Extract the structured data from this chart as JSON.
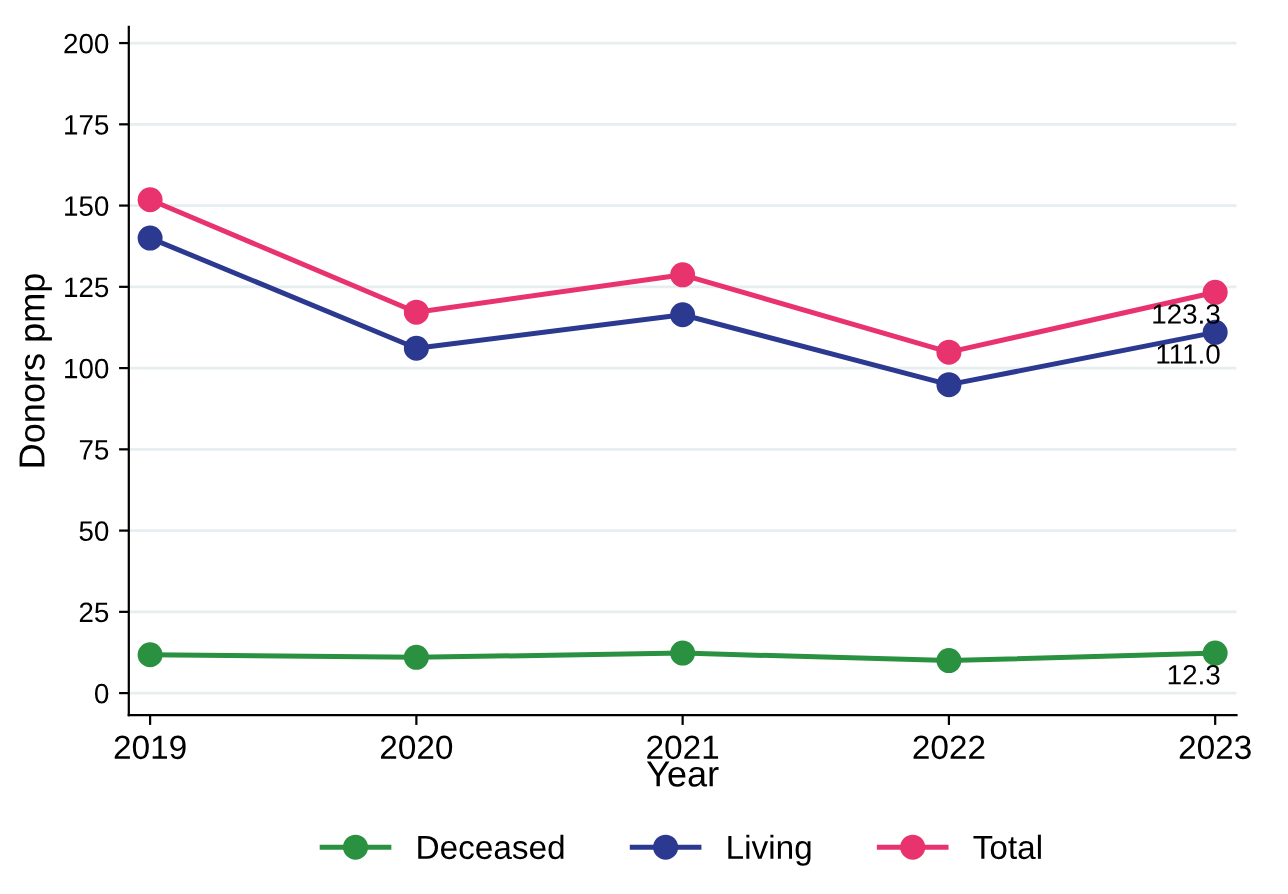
{
  "chart_data": {
    "type": "line",
    "xlabel": "Year",
    "ylabel": "Donors pmp",
    "x": [
      2019,
      2020,
      2021,
      2022,
      2023
    ],
    "series": [
      {
        "name": "Deceased",
        "color": "#2a9140",
        "values": [
          11.8,
          11.0,
          12.3,
          10.0,
          12.3
        ],
        "value_labels": [
          null,
          null,
          null,
          null,
          "12.3"
        ]
      },
      {
        "name": "Living",
        "color": "#2b3990",
        "values": [
          140.0,
          106.1,
          116.4,
          94.9,
          111.0
        ],
        "value_labels": [
          null,
          null,
          null,
          null,
          "111.0"
        ]
      },
      {
        "name": "Total",
        "color": "#e8336f",
        "values": [
          151.8,
          117.2,
          128.7,
          104.9,
          123.3
        ],
        "value_labels": [
          null,
          null,
          null,
          null,
          "123.3"
        ]
      }
    ],
    "xlim": [
      2018.92,
      2023.08
    ],
    "xticks": [
      2019,
      2020,
      2021,
      2022,
      2023
    ],
    "ylim": [
      -6.8,
      205
    ],
    "yticks": [
      0,
      25,
      50,
      75,
      100,
      125,
      150,
      175,
      200
    ],
    "grid": "y",
    "legend": "bottom",
    "marker": "circle",
    "line_style": "solid"
  }
}
